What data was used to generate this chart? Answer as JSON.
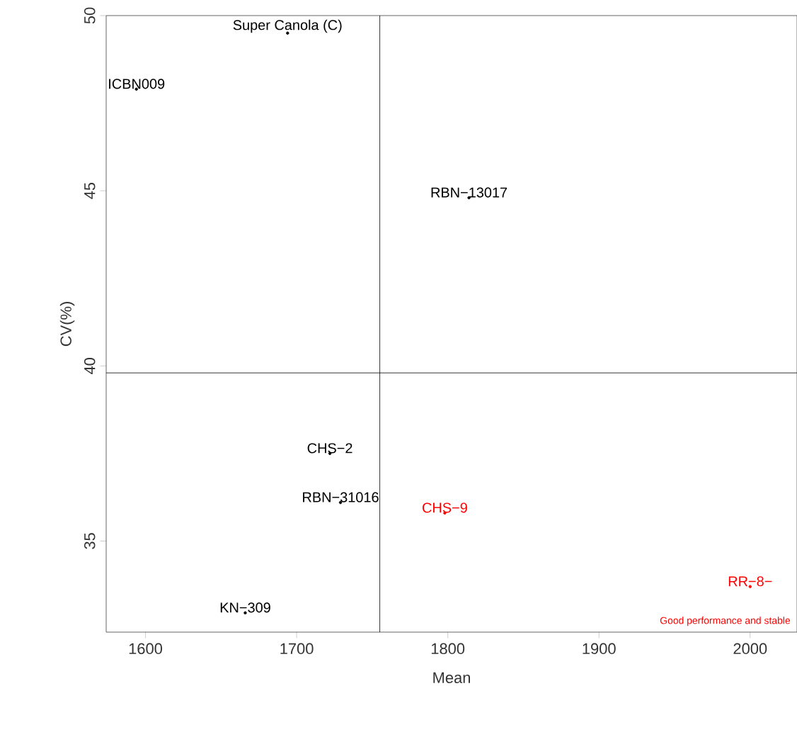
{
  "chart_data": {
    "type": "scatter",
    "xlabel": "Mean",
    "ylabel": "CV(%)",
    "xlim": [
      1574,
      2031
    ],
    "ylim": [
      32.4,
      50
    ],
    "xticks": [
      1600,
      1700,
      1800,
      1900,
      2000
    ],
    "yticks": [
      35,
      40,
      45,
      50
    ],
    "marker": "circle",
    "grid": false,
    "series": [
      {
        "x": [
          1694,
          1594,
          1814,
          1722,
          1729,
          1798,
          1666,
          2000
        ],
        "values": [
          49.5,
          47.9,
          44.8,
          37.5,
          36.1,
          35.8,
          32.95,
          33.7
        ],
        "colors": [
          "#000000",
          "#000000",
          "#000000",
          "#000000",
          "#000000",
          "#ff0000",
          "#000000",
          "#ff0000"
        ],
        "value_labels": [
          "Super Canola (C)",
          "ICBN009",
          "RBN−13017",
          "CHS−2",
          "RBN−31016",
          "CHS−9",
          "KN−309",
          "RR−8−"
        ]
      }
    ],
    "ref_lines": [
      {
        "axis": "x",
        "value": 1755,
        "color": "#000000"
      },
      {
        "axis": "y",
        "value": 39.8,
        "color": "#000000"
      }
    ],
    "annotations": [
      "Good performance and stable"
    ]
  }
}
